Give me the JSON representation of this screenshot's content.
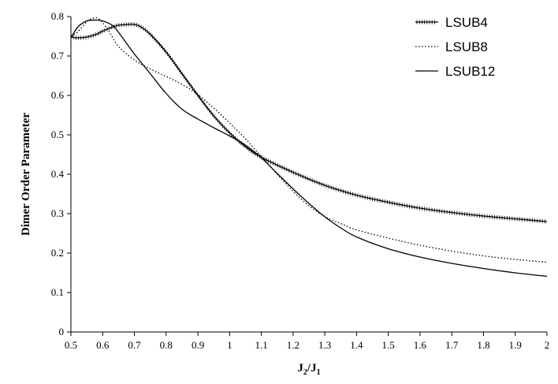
{
  "chart_data": {
    "type": "line",
    "xlabel_main": "J",
    "xlabel_sub1": "2",
    "xlabel_slash": "/J",
    "xlabel_sub2": "1",
    "ylabel": "Dimer Order Parameter",
    "xlim": [
      0.5,
      2
    ],
    "ylim": [
      0,
      0.8
    ],
    "xticks": [
      "0.5",
      "0.6",
      "0.7",
      "0.8",
      "0.9",
      "1",
      "1.1",
      "1.2",
      "1.3",
      "1.4",
      "1.5",
      "1.6",
      "1.7",
      "1.8",
      "1.9",
      "2"
    ],
    "yticks": [
      "0",
      "0.1",
      "0.2",
      "0.3",
      "0.4",
      "0.5",
      "0.6",
      "0.7",
      "0.8"
    ],
    "grid": false,
    "legend_position": "top-right",
    "series": [
      {
        "name": "LSUB4",
        "style": "line-with-markers",
        "x": [
          0.5,
          0.52,
          0.55,
          0.58,
          0.6,
          0.63,
          0.65,
          0.68,
          0.7,
          0.72,
          0.75,
          0.8,
          0.85,
          0.9,
          0.95,
          1.0,
          1.05,
          1.1,
          1.2,
          1.3,
          1.4,
          1.5,
          1.6,
          1.7,
          1.8,
          1.9,
          2.0
        ],
        "y": [
          0.749,
          0.746,
          0.748,
          0.755,
          0.763,
          0.773,
          0.778,
          0.78,
          0.78,
          0.774,
          0.755,
          0.71,
          0.655,
          0.6,
          0.548,
          0.505,
          0.47,
          0.443,
          0.405,
          0.372,
          0.347,
          0.329,
          0.314,
          0.303,
          0.294,
          0.287,
          0.28
        ]
      },
      {
        "name": "LSUB8",
        "style": "dotted",
        "x": [
          0.5,
          0.52,
          0.55,
          0.57,
          0.59,
          0.62,
          0.65,
          0.7,
          0.75,
          0.8,
          0.85,
          0.9,
          0.95,
          1.0,
          1.05,
          1.1,
          1.15,
          1.2,
          1.25,
          1.3,
          1.35,
          1.4,
          1.5,
          1.6,
          1.7,
          1.8,
          1.9,
          2.0
        ],
        "y": [
          0.752,
          0.76,
          0.787,
          0.796,
          0.793,
          0.762,
          0.724,
          0.69,
          0.667,
          0.648,
          0.628,
          0.602,
          0.568,
          0.53,
          0.49,
          0.445,
          0.4,
          0.357,
          0.32,
          0.293,
          0.275,
          0.259,
          0.238,
          0.22,
          0.205,
          0.193,
          0.184,
          0.177
        ]
      },
      {
        "name": "LSUB12",
        "style": "solid",
        "x": [
          0.5,
          0.52,
          0.55,
          0.58,
          0.6,
          0.63,
          0.65,
          0.7,
          0.75,
          0.8,
          0.85,
          0.9,
          0.95,
          1.0,
          1.05,
          1.1,
          1.15,
          1.2,
          1.25,
          1.3,
          1.35,
          1.4,
          1.5,
          1.6,
          1.7,
          1.8,
          1.9,
          2.0
        ],
        "y": [
          0.745,
          0.772,
          0.789,
          0.791,
          0.789,
          0.778,
          0.76,
          0.705,
          0.655,
          0.605,
          0.565,
          0.54,
          0.518,
          0.497,
          0.474,
          0.442,
          0.402,
          0.363,
          0.326,
          0.292,
          0.264,
          0.241,
          0.211,
          0.19,
          0.174,
          0.161,
          0.15,
          0.141
        ]
      }
    ]
  }
}
